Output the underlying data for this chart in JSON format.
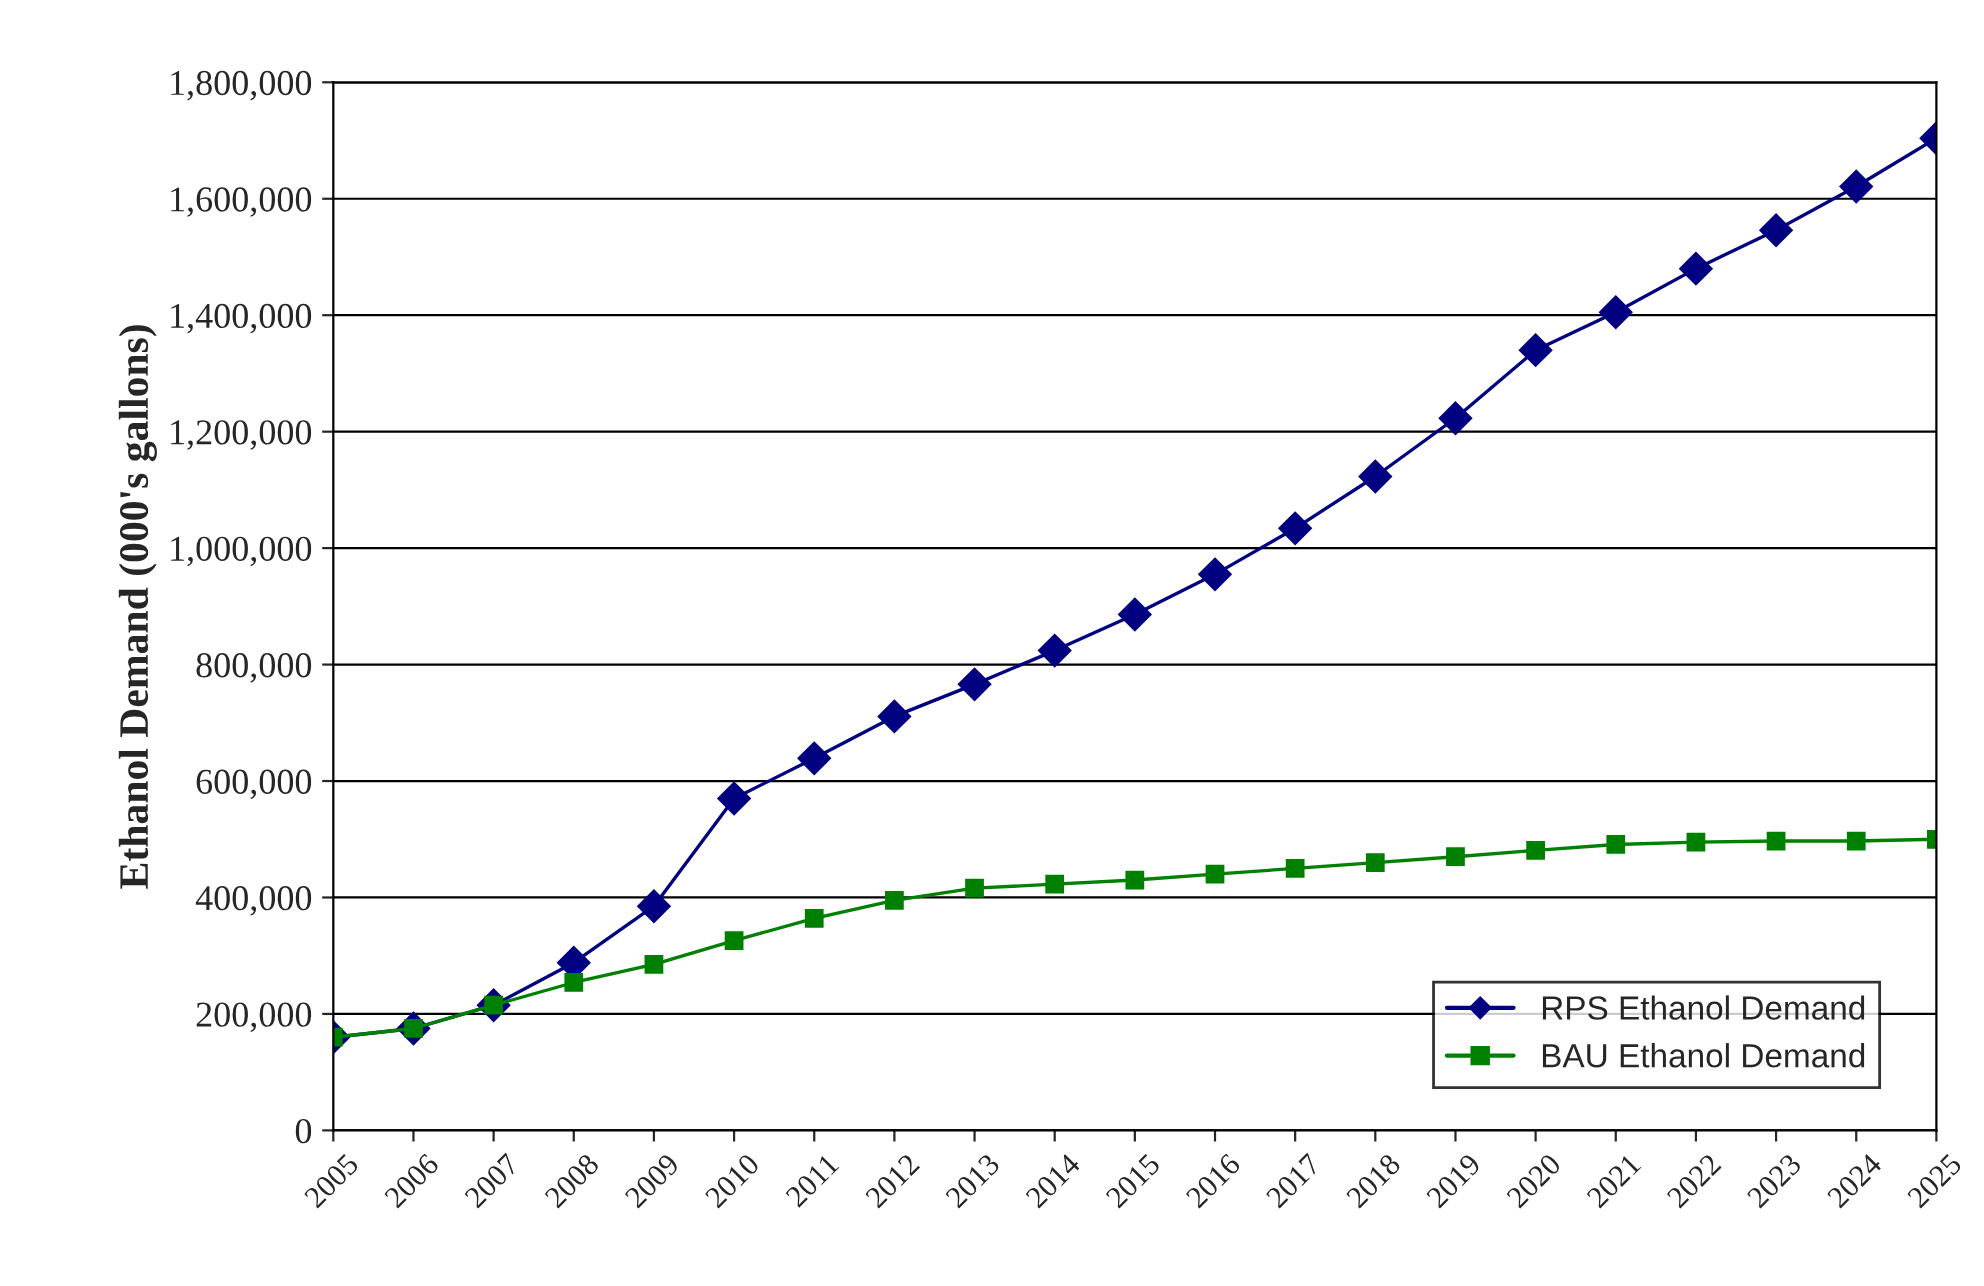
{
  "chart_data": {
    "type": "line",
    "ylabel": "Ethanol Demand (000's gallons)",
    "categories": [
      "2005",
      "2006",
      "2007",
      "2008",
      "2009",
      "2010",
      "2011",
      "2012",
      "2013",
      "2014",
      "2015",
      "2016",
      "2017",
      "2018",
      "2019",
      "2020",
      "2021",
      "2022",
      "2023",
      "2024",
      "2025"
    ],
    "series": [
      {
        "name": "RPS Ethanol Demand",
        "color": "#000080",
        "marker": "diamond",
        "values": [
          160000,
          175000,
          215000,
          288000,
          385000,
          570000,
          639000,
          711000,
          766000,
          824000,
          886000,
          955000,
          1034000,
          1123000,
          1223000,
          1340000,
          1405000,
          1480000,
          1546000,
          1621000,
          1704000
        ]
      },
      {
        "name": "BAU Ethanol Demand",
        "color": "#008000",
        "marker": "square",
        "values": [
          160000,
          175000,
          215000,
          254000,
          285000,
          326000,
          364000,
          395000,
          416000,
          423000,
          430000,
          440000,
          450000,
          460000,
          470000,
          481000,
          491000,
          495000,
          497000,
          497000,
          500000
        ]
      }
    ],
    "ylim": [
      0,
      1800000
    ],
    "yticks": [
      0,
      {
        "value": 200000,
        "label": "200,000"
      },
      {
        "value": 400000,
        "label": "400,000"
      },
      {
        "value": 600000,
        "label": "600,000"
      },
      {
        "value": 800000,
        "label": "800,000"
      },
      {
        "value": 1000000,
        "label": "1,000,000"
      },
      {
        "value": 1200000,
        "label": "1,200,000"
      },
      {
        "value": 1400000,
        "label": "1,400,000"
      },
      {
        "value": 1600000,
        "label": "1,600,000"
      },
      {
        "value": 1800000,
        "label": "1,800,000"
      }
    ],
    "grid": "y",
    "legend": "bottom right",
    "line_style": "solid"
  }
}
